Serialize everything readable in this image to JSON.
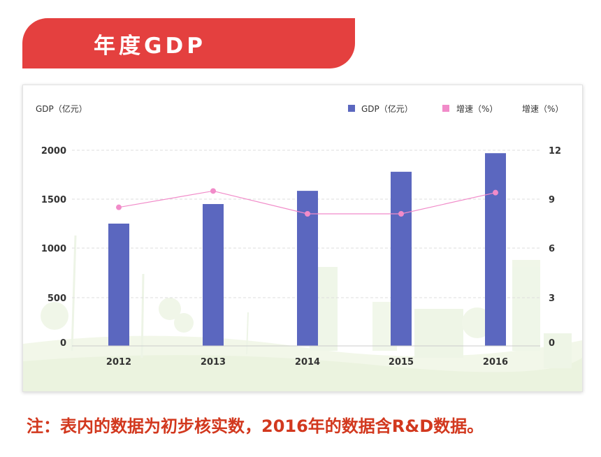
{
  "banner": {
    "title": "年度GDP"
  },
  "note": "注：表内的数据为初步核实数，2016年的数据含R&D数据。",
  "colors": {
    "banner": "#e4403f",
    "bar": "#5b67bf",
    "line": "#f18bc9",
    "note": "#d2381e"
  },
  "chart_data": {
    "type": "bar",
    "categories": [
      "2012",
      "2013",
      "2014",
      "2015",
      "2016"
    ],
    "series": [
      {
        "name": "GDP（亿元）",
        "type": "bar",
        "axis": "left",
        "color": "#5b67bf",
        "values": [
          1250,
          1450,
          1585,
          1780,
          1970
        ]
      },
      {
        "name": "增速（%）",
        "type": "line",
        "axis": "right",
        "color": "#f18bc9",
        "values": [
          8.5,
          9.5,
          8.1,
          8.1,
          9.4
        ]
      }
    ],
    "ylabel_left": "GDP（亿元）",
    "ylabel_right": "增速（%）",
    "ylim_left": [
      0,
      2000
    ],
    "ylim_right": [
      0,
      12
    ],
    "yticks_left": [
      "0",
      "500",
      "1000",
      "1500",
      "2000"
    ],
    "yticks_right": [
      "0",
      "3",
      "6",
      "9",
      "12"
    ],
    "legend_position": "top-right",
    "grid": "dashed-horizontal"
  }
}
